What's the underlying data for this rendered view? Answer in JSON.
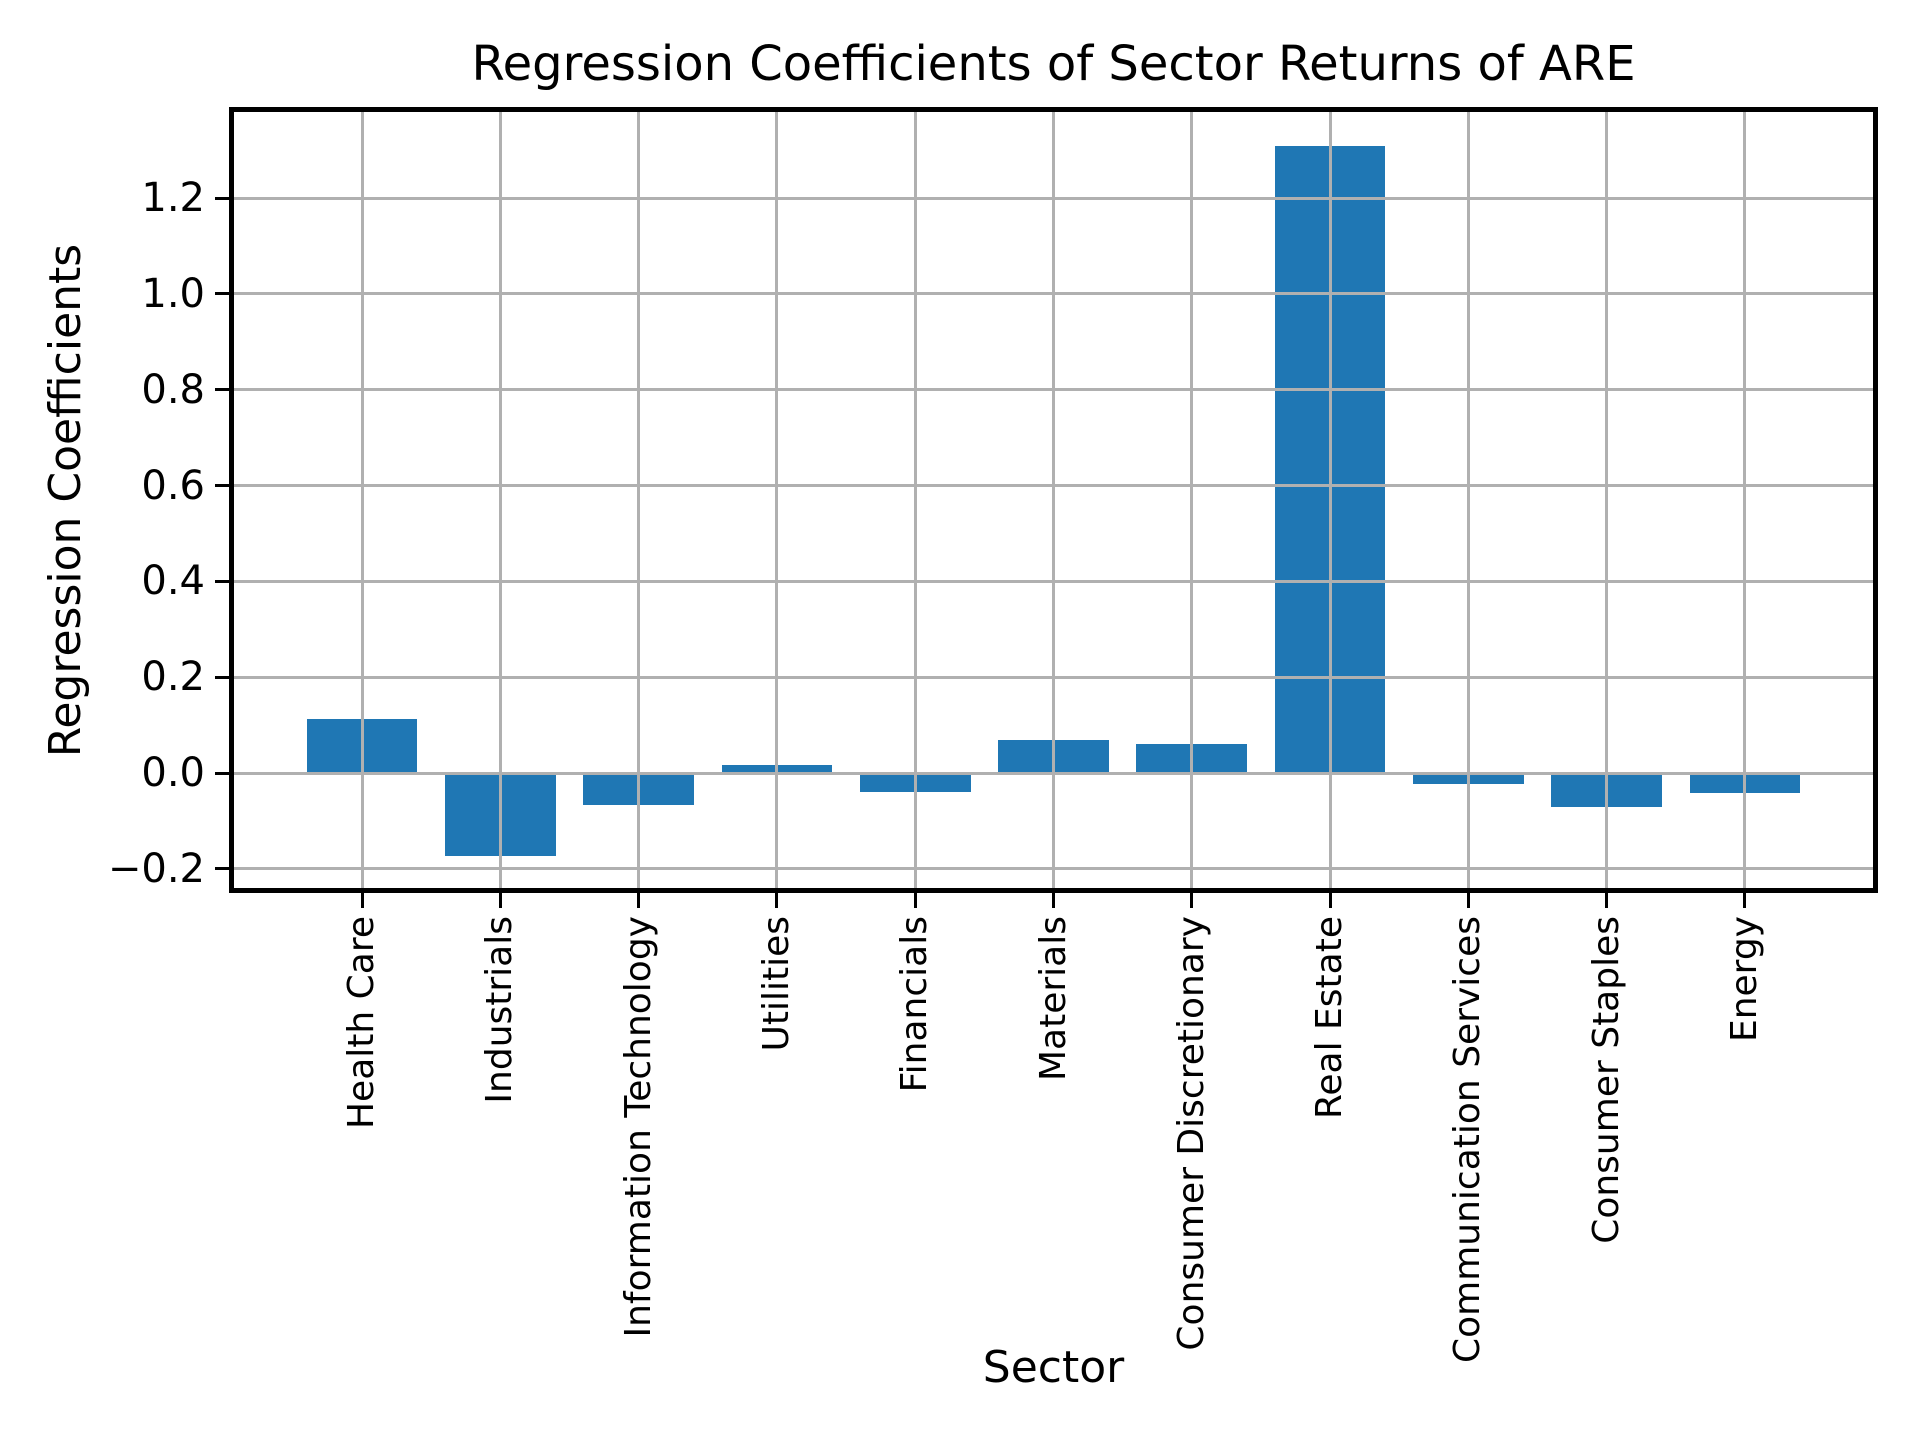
{
  "chart_data": {
    "type": "bar",
    "title": "Regression Coefficients of Sector Returns of ARE",
    "xlabel": "Sector",
    "ylabel": "Regression Coefficients",
    "categories": [
      "Health Care",
      "Industrials",
      "Information Technology",
      "Utilities",
      "Financials",
      "Materials",
      "Consumer Discretionary",
      "Real Estate",
      "Communication Services",
      "Consumer Staples",
      "Energy"
    ],
    "values": [
      0.112,
      -0.172,
      -0.066,
      0.016,
      -0.039,
      0.069,
      0.061,
      1.308,
      -0.023,
      -0.07,
      -0.042
    ],
    "ylim": [
      -0.244,
      1.384
    ],
    "yticks": [
      -0.2,
      0.0,
      0.2,
      0.4,
      0.6,
      0.8,
      1.0,
      1.2
    ],
    "ytick_labels": [
      "−0.2",
      "0.0",
      "0.2",
      "0.4",
      "0.6",
      "0.8",
      "1.0",
      "1.2"
    ],
    "xtick_rotation": 90,
    "grid": true,
    "grid_above_bars": true,
    "legend": false,
    "bar_width_fraction": 0.8,
    "bar_color": "#1f77b4",
    "grid_color": "#b0b0b0",
    "axis_color": "#000000",
    "text_color": "#000000",
    "background": "#ffffff"
  }
}
